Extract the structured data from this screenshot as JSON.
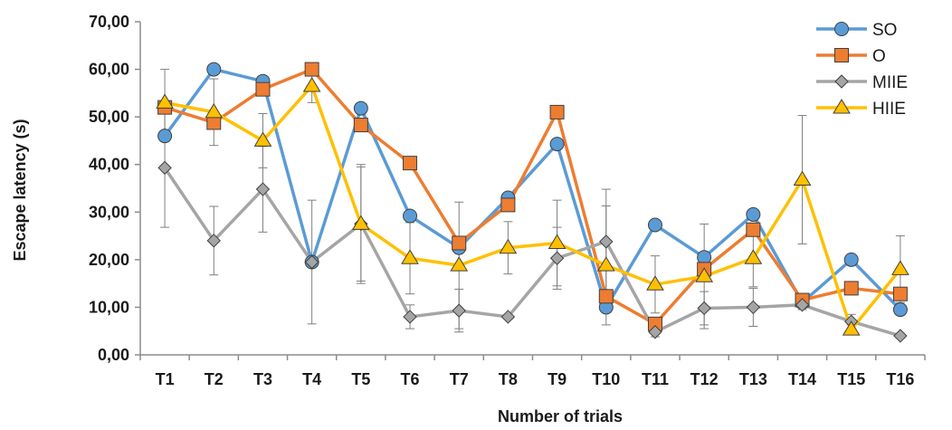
{
  "chart_data": {
    "type": "line",
    "title": "",
    "xlabel": "Number of trials",
    "ylabel": "Escape latency (s)",
    "ylim": [
      0,
      70
    ],
    "yticks": [
      "0,00",
      "10,00",
      "20,00",
      "30,00",
      "40,00",
      "50,00",
      "60,00",
      "70,00"
    ],
    "categories": [
      "T1",
      "T2",
      "T3",
      "T4",
      "T5",
      "T6",
      "T7",
      "T8",
      "T9",
      "T10",
      "T11",
      "T12",
      "T13",
      "T14",
      "T15",
      "T16"
    ],
    "grid": false,
    "legend_position": "top-right",
    "series": [
      {
        "name": "SO",
        "color": "#5b9bd5",
        "marker": "circle",
        "values": [
          46.0,
          60.0,
          57.5,
          19.5,
          51.8,
          29.2,
          22.5,
          33.0,
          44.3,
          10.0,
          27.3,
          20.5,
          29.5,
          11.0,
          20.0,
          9.5
        ],
        "errors": [
          0,
          0,
          0,
          0,
          0,
          0,
          0,
          0,
          0,
          0,
          0,
          0,
          0,
          0,
          0,
          0
        ]
      },
      {
        "name": "O",
        "color": "#ed7d31",
        "marker": "square",
        "values": [
          52.0,
          48.8,
          55.8,
          60.0,
          48.3,
          40.3,
          23.5,
          31.5,
          51.0,
          12.3,
          6.5,
          18.0,
          26.3,
          11.5,
          14.0,
          12.8
        ],
        "errors": [
          0,
          0,
          0,
          0,
          0,
          0,
          0,
          0,
          0,
          0,
          0,
          0,
          0,
          0,
          0,
          0
        ]
      },
      {
        "name": "MIIE",
        "color": "#a5a5a5",
        "marker": "diamond",
        "values": [
          39.3,
          24.0,
          34.8,
          19.5,
          27.5,
          8.0,
          9.3,
          8.0,
          20.3,
          23.8,
          4.8,
          9.8,
          10.0,
          10.5,
          7.0,
          4.0
        ],
        "errors": [
          12.5,
          7.2,
          9.0,
          13.0,
          12.0,
          2.5,
          4.5,
          0.5,
          6.5,
          11.0,
          1.0,
          3.5,
          4.0,
          1.0,
          1.5,
          0.5
        ]
      },
      {
        "name": "HIIE",
        "color": "#ffc000",
        "marker": "triangle",
        "values": [
          53.0,
          51.0,
          45.0,
          56.5,
          27.5,
          20.3,
          18.8,
          22.5,
          23.5,
          18.8,
          14.8,
          16.5,
          20.3,
          36.8,
          5.3,
          18.0
        ],
        "errors": [
          7.0,
          7.0,
          5.7,
          3.5,
          12.5,
          7.5,
          13.3,
          5.5,
          9.0,
          12.5,
          6.0,
          11.0,
          6.0,
          13.5,
          1.0,
          7.0
        ]
      }
    ]
  }
}
